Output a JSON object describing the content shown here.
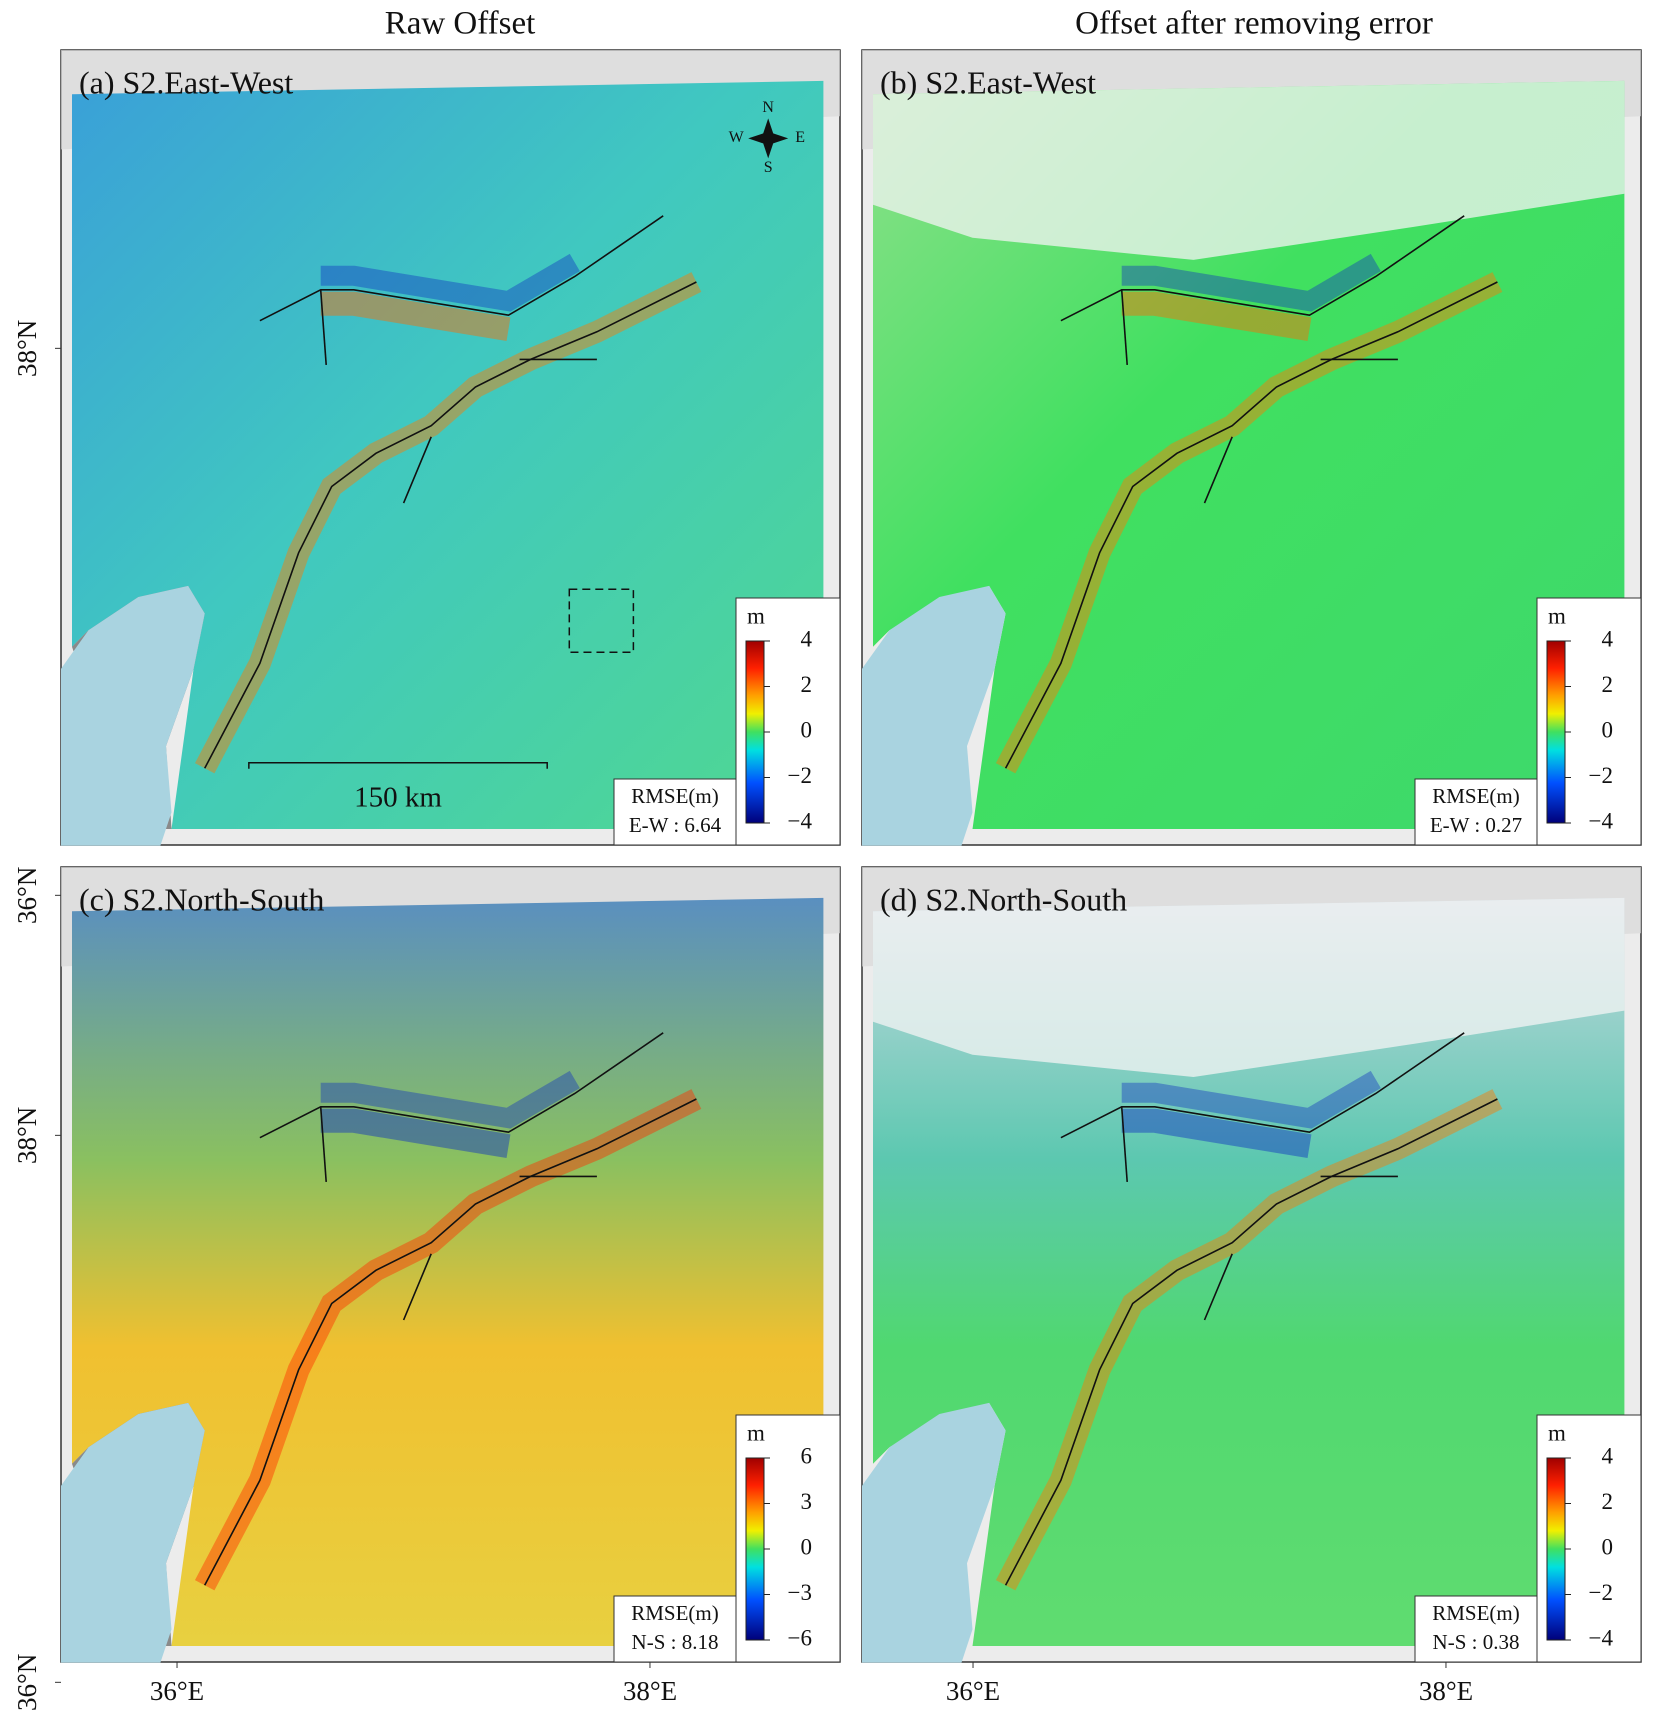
{
  "column_titles": [
    "Raw Offset",
    "Offset after removing error"
  ],
  "panels": [
    {
      "label": "(a) S2.East-West",
      "colorbar": {
        "unit": "m",
        "lim": [
          -4,
          4
        ],
        "ticks": [
          4,
          2,
          0,
          {
            "value": -2,
            "label": "−2"
          },
          {
            "value": -4,
            "label": "−4"
          }
        ]
      },
      "rmse_title": "RMSE(m)",
      "rmse": "E-W : 6.64"
    },
    {
      "label": "(b) S2.East-West",
      "colorbar": {
        "unit": "m",
        "lim": [
          -4,
          4
        ],
        "ticks": [
          4,
          2,
          0,
          {
            "value": -2,
            "label": "−2"
          },
          {
            "value": -4,
            "label": "−4"
          }
        ]
      },
      "rmse_title": "RMSE(m)",
      "rmse": "E-W : 0.27"
    },
    {
      "label": "(c) S2.North-South",
      "colorbar": {
        "unit": "m",
        "lim": [
          -6,
          6
        ],
        "ticks": [
          6,
          3,
          0,
          {
            "value": -3,
            "label": "−3"
          },
          {
            "value": -6,
            "label": "−6"
          }
        ]
      },
      "rmse_title": "RMSE(m)",
      "rmse": "N-S : 8.18"
    },
    {
      "label": "(d) S2.North-South",
      "colorbar": {
        "unit": "m",
        "lim": [
          -4,
          4
        ],
        "ticks": [
          4,
          2,
          0,
          {
            "value": -2,
            "label": "−2"
          },
          {
            "value": -4,
            "label": "−4"
          }
        ]
      },
      "rmse_title": "RMSE(m)",
      "rmse": "N-S : 0.38"
    }
  ],
  "lat_labels": [
    "38°N",
    "36°N"
  ],
  "lon_labels": [
    "36°E",
    "38°E"
  ],
  "compass": {
    "n": "N",
    "e": "E",
    "s": "S",
    "w": "W"
  },
  "scale_bar": "150 km"
}
